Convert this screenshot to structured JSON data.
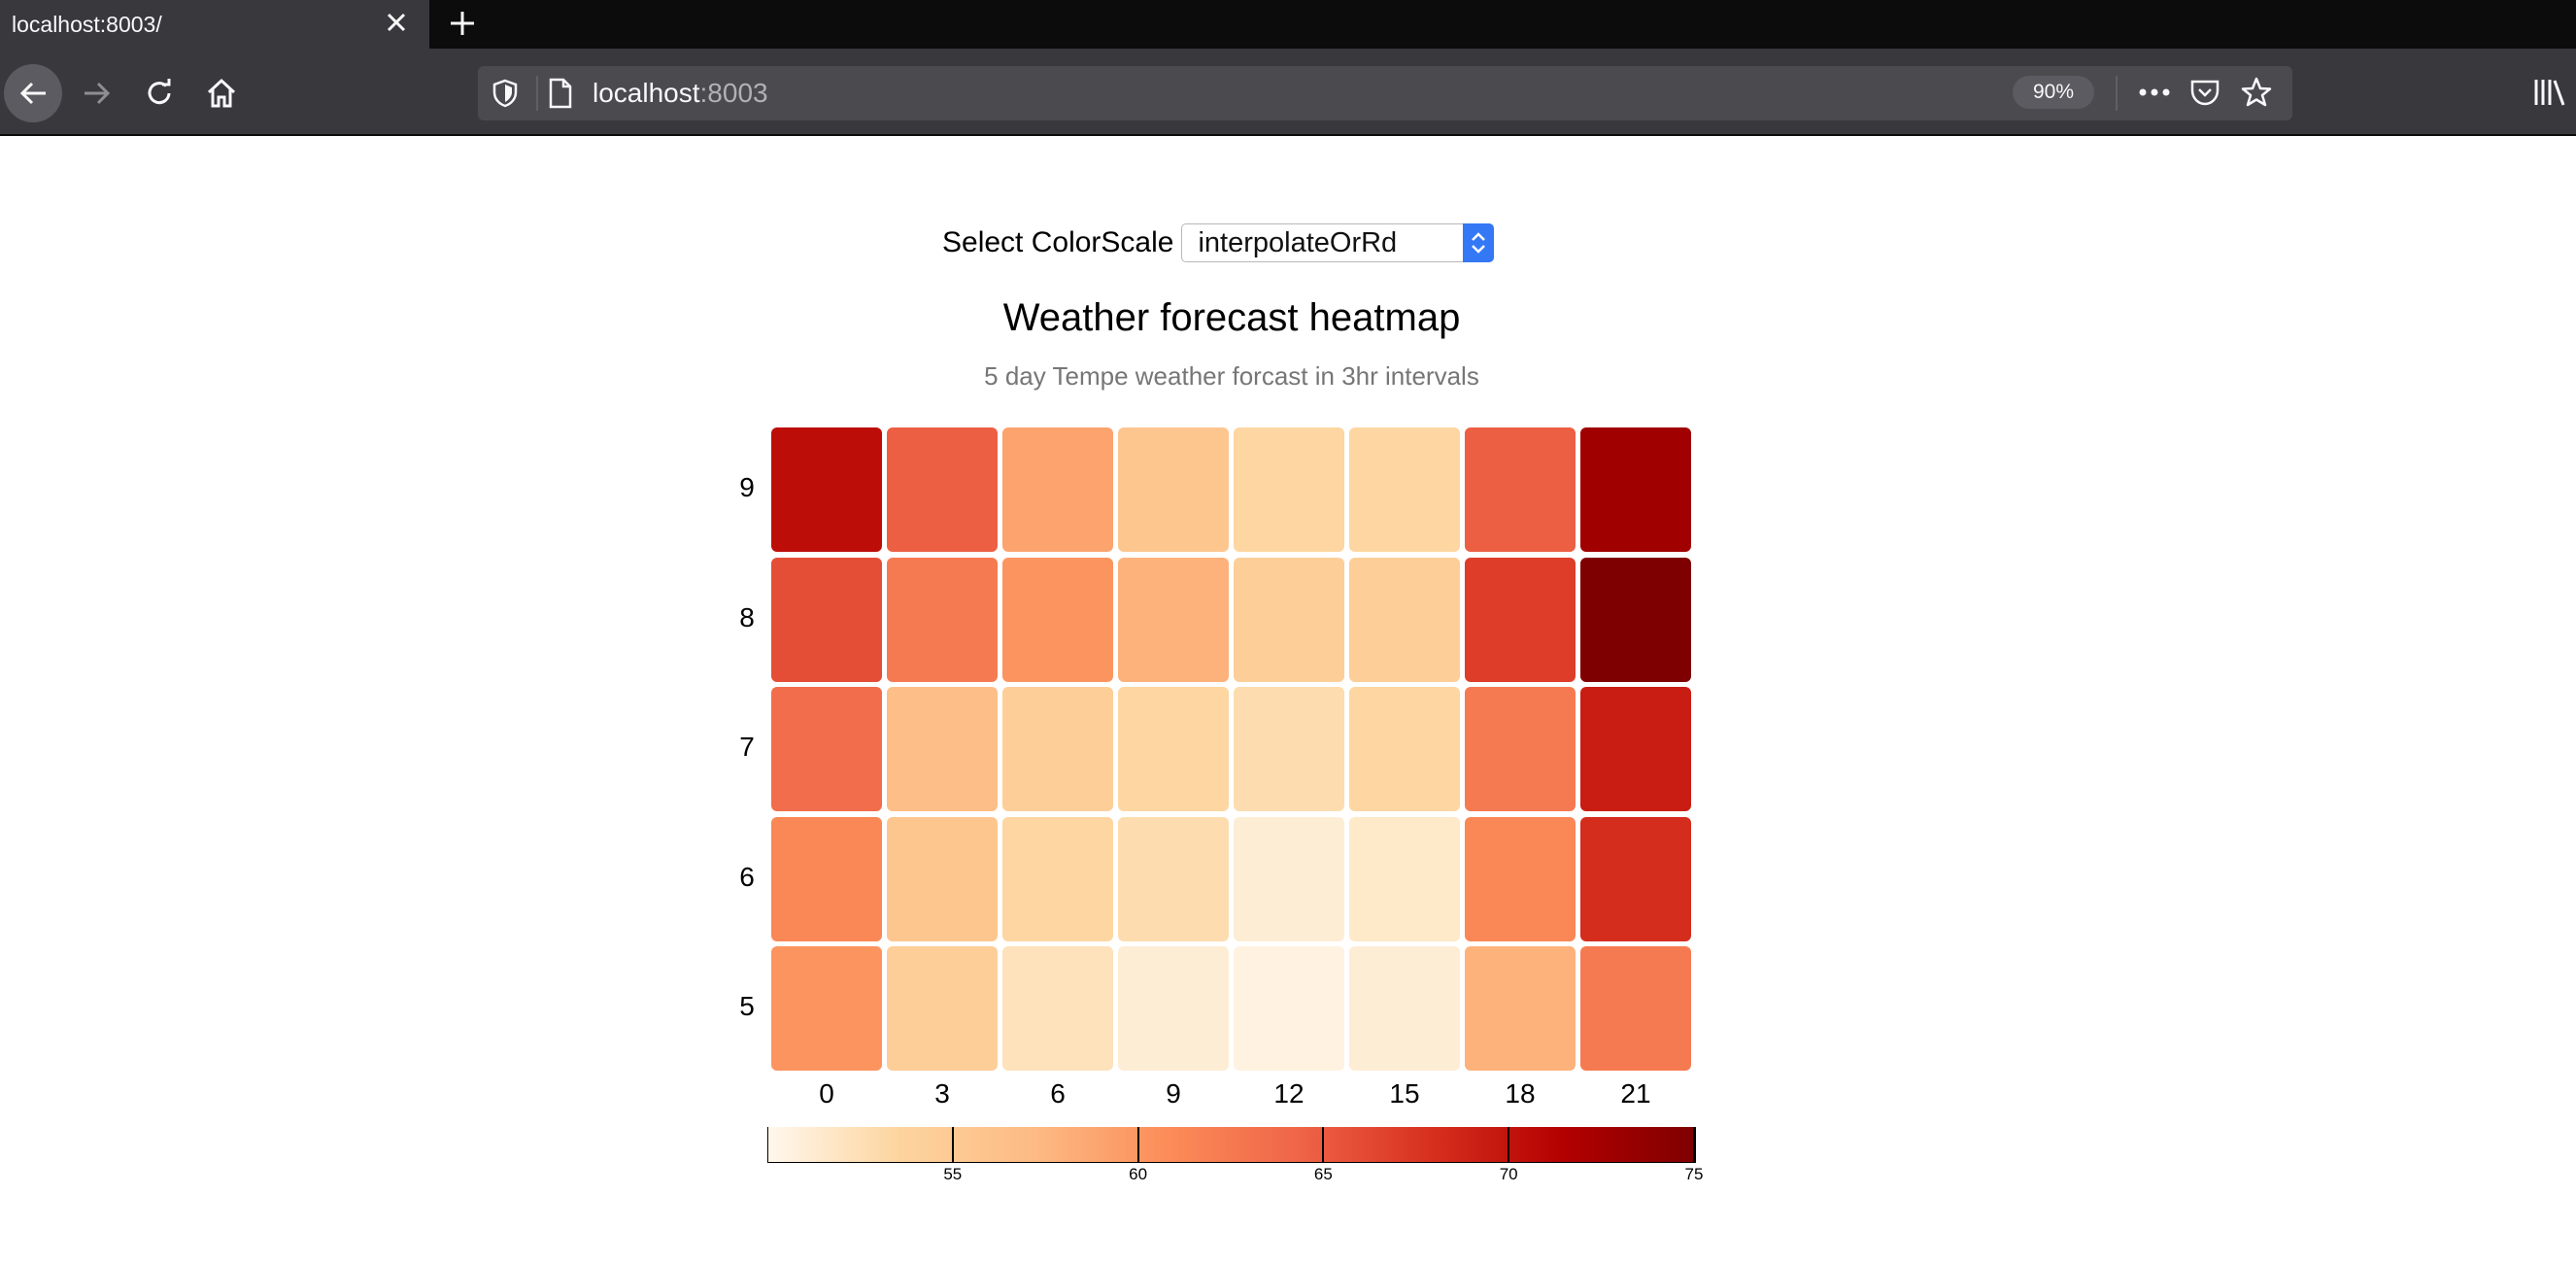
{
  "browser": {
    "tab_title": "localhost:8003/",
    "url_host": "localhost",
    "url_port": ":8003",
    "zoom": "90%"
  },
  "controls": {
    "select_label": "Select ColorScale",
    "select_value": "interpolateOrRd"
  },
  "heading": {
    "title": "Weather forecast heatmap",
    "subtitle": "5 day Tempe weather forcast in 3hr intervals"
  },
  "chart_data": {
    "type": "heatmap",
    "color_scale": "interpolateOrRd",
    "x_categories": [
      "0",
      "3",
      "6",
      "9",
      "12",
      "15",
      "18",
      "21"
    ],
    "y_categories": [
      "9",
      "8",
      "7",
      "6",
      "5"
    ],
    "values": [
      [
        71,
        66,
        61,
        58,
        56,
        56,
        66,
        73
      ],
      [
        67,
        64,
        62,
        60,
        57,
        57,
        68,
        75
      ],
      [
        65,
        59,
        57,
        56,
        55,
        56,
        64,
        70
      ],
      [
        63,
        58,
        56,
        55,
        52,
        53,
        63,
        69
      ],
      [
        62,
        57,
        54,
        52,
        51,
        52,
        60,
        64
      ]
    ],
    "legend": {
      "domain": [
        50,
        75
      ],
      "ticks": [
        "55",
        "60",
        "65",
        "70",
        "75"
      ]
    }
  }
}
